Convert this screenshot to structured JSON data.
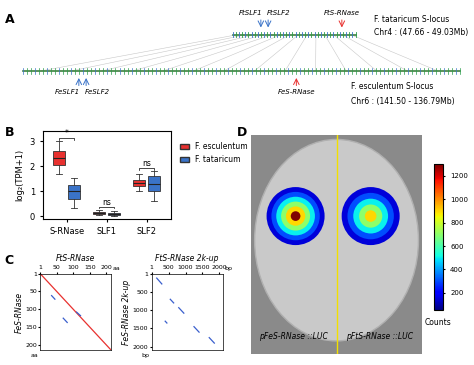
{
  "panels": [
    "A",
    "B",
    "C",
    "D"
  ],
  "synteny": {
    "upper": {
      "species": "F. tataricum",
      "locus": "S-locus",
      "region": "Chr4 : (47.66 - 49.03Mb)",
      "genes": [
        "FtSLF1",
        "FtSLF2",
        "FtS-RNase"
      ]
    },
    "lower": {
      "species": "F. esculentum",
      "locus": "S-locus",
      "region": "Chr6 : (141.50 - 136.79Mb)",
      "genes": [
        "FeSLF1",
        "FeSLF2",
        "FeS-RNase"
      ]
    }
  },
  "chart_data": [
    {
      "type": "box",
      "ylabel": "log₂(TPM+1)",
      "categories": [
        "S-RNase",
        "SLF1",
        "SLF2"
      ],
      "ylim": [
        -0.1,
        3.4
      ],
      "yticks": [
        0,
        1,
        2,
        3
      ],
      "legend": "right",
      "significance": [
        "*",
        "ns",
        "ns"
      ],
      "series": [
        {
          "name": "F. esculentum",
          "color": "#e8312f",
          "stats": [
            [
              1.7,
              2.05,
              2.35,
              2.6,
              3.0
            ],
            [
              0.05,
              0.09,
              0.12,
              0.17,
              0.25
            ],
            [
              1.0,
              1.2,
              1.35,
              1.45,
              1.7
            ]
          ]
        },
        {
          "name": "F. tataricum",
          "color": "#3a73c8",
          "stats": [
            [
              0.35,
              0.7,
              1.0,
              1.25,
              1.55
            ],
            [
              0.02,
              0.06,
              0.1,
              0.14,
              0.2
            ],
            [
              0.6,
              1.0,
              1.3,
              1.6,
              1.8
            ]
          ]
        }
      ]
    },
    {
      "type": "dotplot",
      "title": "FtS-RNase",
      "ylabel": "FeS-RNase",
      "unit": "aa",
      "xlim": [
        1,
        215
      ],
      "ylim": [
        1,
        215
      ],
      "xticks": [
        1,
        50,
        100,
        150,
        200
      ],
      "yticks": [
        1,
        50,
        100,
        150,
        200
      ],
      "series": [
        {
          "color": "#e8312f",
          "segments": [
            [
              1,
              1,
              215,
              215
            ]
          ]
        },
        {
          "color": "#3a5fcd",
          "segments": [
            [
              35,
              62,
              45,
              72
            ],
            [
              70,
              125,
              82,
              137
            ],
            [
              110,
              108,
              122,
              118
            ]
          ]
        }
      ]
    },
    {
      "type": "dotplot",
      "title": "FtS-RNase 2k-up",
      "ylabel": "FeS-RNase 2k-up",
      "unit": "bp",
      "xlim": [
        1,
        2100
      ],
      "ylim": [
        1,
        2100
      ],
      "xticks": [
        1,
        500,
        1000,
        1500,
        2000
      ],
      "yticks": [
        1,
        500,
        1000,
        1500,
        2000
      ],
      "series": [
        {
          "color": "#3a5fcd",
          "segments": [
            [
              150,
              120,
              300,
              280
            ],
            [
              550,
              700,
              650,
              800
            ],
            [
              800,
              930,
              950,
              1080
            ],
            [
              1250,
              1450,
              1400,
              1600
            ],
            [
              1700,
              1750,
              1850,
              1900
            ],
            [
              400,
              1300,
              450,
              1350
            ]
          ]
        }
      ]
    }
  ],
  "luciferase": {
    "labels": [
      "pFeS-RNase ::LUC",
      "pFtS-RNase ::LUC"
    ],
    "spots": [
      [
        150,
        300,
        500,
        700,
        900,
        1300
      ],
      [
        150,
        300,
        500,
        700,
        900
      ]
    ],
    "colorbar": {
      "label": "Counts",
      "lim": [
        50,
        1300
      ],
      "ticks": [
        200,
        400,
        600,
        800,
        1000,
        1200
      ]
    }
  }
}
